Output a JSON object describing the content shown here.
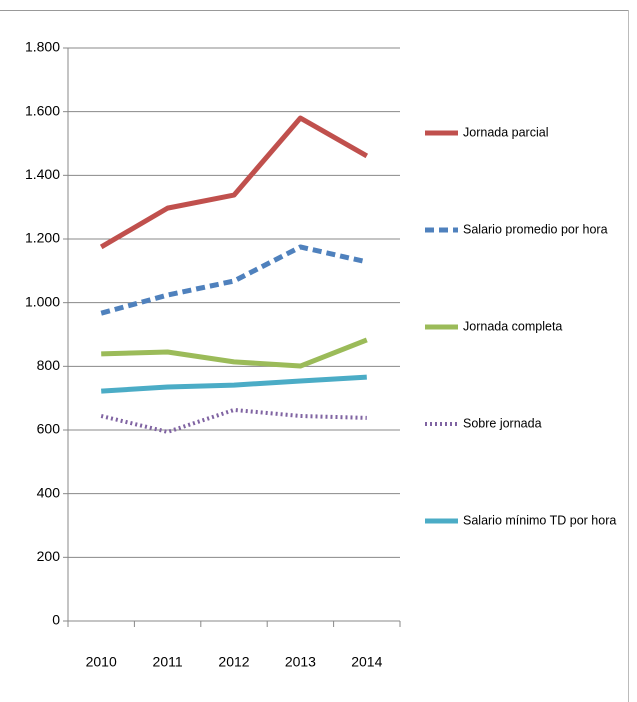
{
  "chart_data": {
    "type": "line",
    "categories": [
      "2010",
      "2011",
      "2012",
      "2013",
      "2014"
    ],
    "series": [
      {
        "name": "Jornada parcial",
        "color": "#c0504d",
        "style": "solid",
        "values": [
          1175,
          1297,
          1338,
          1580,
          1461
        ]
      },
      {
        "name": "Salario promedio por hora",
        "color": "#4f81bd",
        "style": "dashed",
        "values": [
          967,
          1024,
          1068,
          1175,
          1128
        ]
      },
      {
        "name": "Jornada completa",
        "color": "#9bbb59",
        "style": "solid",
        "values": [
          839,
          845,
          814,
          801,
          883
        ]
      },
      {
        "name": "Sobre jornada",
        "color": "#8064a2",
        "style": "dotted",
        "values": [
          644,
          594,
          663,
          644,
          638
        ]
      },
      {
        "name": "Salario mínimo TD por hora",
        "color": "#4bacc6",
        "style": "solid",
        "values": [
          722,
          735,
          741,
          754,
          766
        ]
      }
    ],
    "ylim": [
      0,
      1800
    ],
    "yticks": [
      0,
      200,
      400,
      600,
      800,
      {
        "value": 1000,
        "label": "1.000"
      },
      {
        "value": 1200,
        "label": "1.200"
      },
      {
        "value": 1400,
        "label": "1.400"
      },
      {
        "value": 1600,
        "label": "1.600"
      },
      {
        "value": 1800,
        "label": "1.800"
      }
    ],
    "grid": true,
    "legend": "right"
  }
}
